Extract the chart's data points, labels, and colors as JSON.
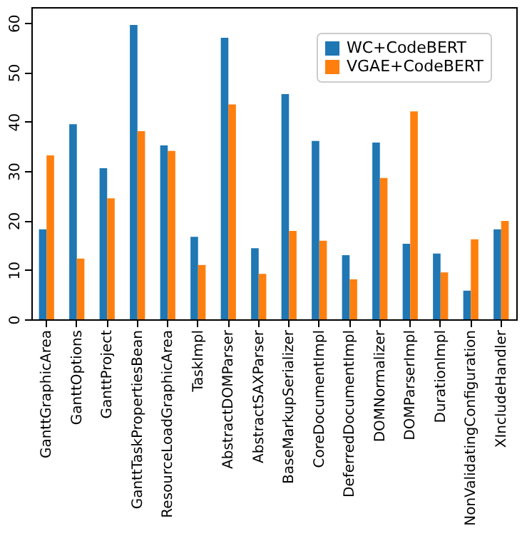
{
  "chart_data": {
    "type": "bar",
    "categories": [
      "GanttGraphicArea",
      "GanttOptions",
      "GanttProject",
      "GanttTaskPropertiesBean",
      "ResourceLoadGraphicArea",
      "TaskImpl",
      "AbstractDOMParser",
      "AbstractSAXParser",
      "BaseMarkupSerializer",
      "CoreDocumentImpl",
      "DeferredDocumentImpl",
      "DOMNormalizer",
      "DOMParserImpl",
      "DurationImpl",
      "NonValidatingConfiguration",
      "XIncludeHandler"
    ],
    "series": [
      {
        "name": "WC+CodeBERT",
        "color": "#1f77b4",
        "values": [
          18.2,
          39.5,
          30.6,
          59.6,
          35.2,
          16.7,
          57.0,
          14.4,
          45.6,
          36.1,
          13.0,
          35.8,
          15.3,
          13.3,
          5.8,
          18.2
        ]
      },
      {
        "name": "VGAE+CodeBERT",
        "color": "#ff7f0e",
        "values": [
          33.2,
          12.3,
          24.5,
          38.1,
          34.1,
          11.0,
          43.5,
          9.2,
          17.9,
          15.9,
          8.1,
          28.6,
          42.1,
          9.5,
          16.2,
          19.9
        ]
      }
    ],
    "ylim": [
      0,
      63.2
    ],
    "yticks": [
      0,
      10,
      20,
      30,
      40,
      50,
      60
    ],
    "grid": false,
    "legend": "top right"
  }
}
